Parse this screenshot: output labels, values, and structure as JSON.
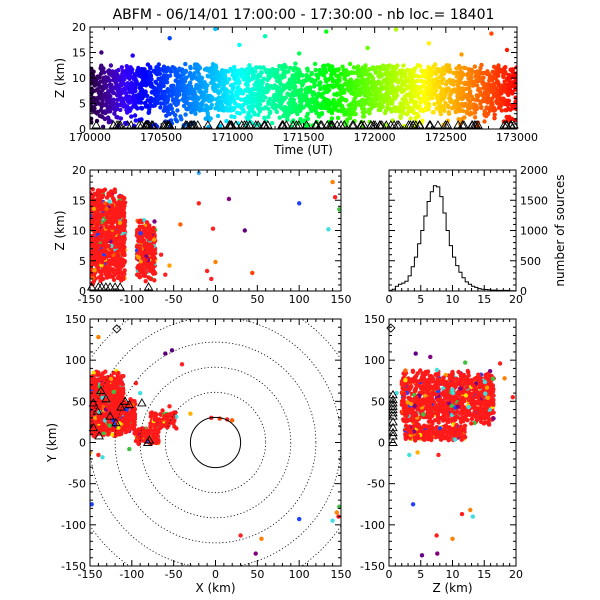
{
  "chart_data": [
    {
      "type": "scatter",
      "panel": "time-height",
      "title": "ABFM - 06/14/01 17:00:00 - 17:30:00 - nb loc.= 18401",
      "xlabel": "Time (UT)",
      "ylabel": "Z (km)",
      "xlim": [
        170000,
        173000
      ],
      "ylim": [
        0,
        20
      ],
      "x_ticks": [
        170000,
        170500,
        171000,
        171500,
        172000,
        172500,
        173000
      ],
      "y_ticks": [
        0,
        5,
        10,
        15,
        20
      ],
      "color_by": "time (rainbow: purple at start, red at end)",
      "band": {
        "z_low": 2.5,
        "z_high": 13
      },
      "outliers": [
        {
          "x": 170080,
          "y": 15.0
        },
        {
          "x": 170300,
          "y": 14.4
        },
        {
          "x": 170560,
          "y": 17.8
        },
        {
          "x": 170880,
          "y": 19.6
        },
        {
          "x": 171050,
          "y": 16.5
        },
        {
          "x": 171230,
          "y": 18.2
        },
        {
          "x": 171470,
          "y": 14.8
        },
        {
          "x": 171660,
          "y": 19.1
        },
        {
          "x": 171950,
          "y": 15.9
        },
        {
          "x": 172150,
          "y": 19.5
        },
        {
          "x": 172380,
          "y": 16.8
        },
        {
          "x": 172610,
          "y": 14.6
        },
        {
          "x": 172820,
          "y": 18.7
        },
        {
          "x": 172930,
          "y": 15.5
        }
      ]
    },
    {
      "type": "scatter",
      "panel": "x-height",
      "xlabel": "",
      "ylabel": "Z (km)",
      "xlim": [
        -150,
        150
      ],
      "ylim": [
        0,
        20
      ],
      "x_ticks": [
        -150,
        -100,
        -50,
        0,
        50,
        100,
        150
      ],
      "y_ticks": [
        0,
        5,
        10,
        15,
        20
      ],
      "clusters": [
        {
          "x_min": -152,
          "x_max": -108,
          "z_min": 1.0,
          "z_max": 17.5
        },
        {
          "x_min": -94,
          "x_max": -72,
          "z_min": 1.5,
          "z_max": 12.0
        }
      ],
      "scattered_points": [
        {
          "x": -20,
          "y": 19.5,
          "color": "#40b0ff"
        },
        {
          "x": -20,
          "y": 14.5,
          "color": "#ff2020"
        },
        {
          "x": -42,
          "y": 11.0,
          "color": "#ff6000"
        },
        {
          "x": -3,
          "y": 10.3,
          "color": "#ff2020"
        },
        {
          "x": 16,
          "y": 15.2,
          "color": "#800080"
        },
        {
          "x": 35,
          "y": 10.0,
          "color": "#600080"
        },
        {
          "x": -10,
          "y": 3.3,
          "color": "#ff2020"
        },
        {
          "x": 0,
          "y": 4.8,
          "color": "#ff8000"
        },
        {
          "x": -5,
          "y": 2.0,
          "color": "#ff2020"
        },
        {
          "x": 100,
          "y": 14.5,
          "color": "#2040ff"
        },
        {
          "x": 140,
          "y": 18.0,
          "color": "#ff8000"
        },
        {
          "x": 143,
          "y": 15.5,
          "color": "#ff2020"
        },
        {
          "x": 135,
          "y": 10.2,
          "color": "#40e0e0"
        },
        {
          "x": 148,
          "y": 13.5,
          "color": "#40c040"
        },
        {
          "x": -65,
          "y": 6.0,
          "color": "#ff2020"
        },
        {
          "x": -55,
          "y": 4.2,
          "color": "#ffa000"
        },
        {
          "x": -60,
          "y": 2.7,
          "color": "#ff2020"
        },
        {
          "x": 44,
          "y": 3.0,
          "color": "#ff4000"
        }
      ],
      "stations_x": [
        -148,
        -140,
        -136,
        -131,
        -126,
        -120,
        -114,
        -80
      ]
    },
    {
      "type": "histogram",
      "panel": "height-distribution",
      "xlabel": "",
      "ylabel": "number of sources",
      "y_axis_side": "right",
      "xlim": [
        0,
        20
      ],
      "ylim": [
        0,
        2000
      ],
      "x_ticks": [
        0,
        5,
        10,
        15,
        20
      ],
      "y_ticks": [
        0,
        500,
        1000,
        1500,
        2000
      ],
      "bin_width": 0.5,
      "bin_starts": [
        0,
        0.5,
        1,
        1.5,
        2,
        2.5,
        3,
        3.5,
        4,
        4.5,
        5,
        5.5,
        6,
        6.5,
        7,
        7.5,
        8,
        8.5,
        9,
        9.5,
        10,
        10.5,
        11,
        11.5,
        12,
        12.5,
        13,
        13.5,
        14,
        14.5,
        15,
        15.5,
        16,
        16.5,
        17,
        17.5,
        18,
        18.5,
        19,
        19.5
      ],
      "counts": [
        10,
        30,
        80,
        110,
        130,
        160,
        250,
        400,
        560,
        780,
        1000,
        1240,
        1480,
        1640,
        1740,
        1720,
        1560,
        1290,
        1000,
        750,
        560,
        420,
        310,
        220,
        150,
        110,
        80,
        60,
        40,
        30,
        25,
        20,
        15,
        15,
        10,
        10,
        10,
        10,
        5,
        5
      ]
    },
    {
      "type": "scatter",
      "panel": "plan-view",
      "xlabel": "X (km)",
      "ylabel": "Y (km)",
      "xlim": [
        -150,
        150
      ],
      "ylim": [
        -150,
        150
      ],
      "x_ticks": [
        -150,
        -100,
        -50,
        0,
        50,
        100,
        150
      ],
      "y_ticks": [
        -150,
        -100,
        -50,
        0,
        50,
        100,
        150
      ],
      "range_rings_km": [
        30,
        60,
        90,
        120,
        150,
        180
      ],
      "clusters": [
        {
          "x_min": -152,
          "x_max": -110,
          "y_min": 5,
          "y_max": 88
        },
        {
          "x_min": -128,
          "x_max": -96,
          "y_min": 10,
          "y_max": 55
        },
        {
          "x_min": -95,
          "x_max": -68,
          "y_min": -2,
          "y_max": 18
        },
        {
          "x_min": -78,
          "x_max": -45,
          "y_min": 15,
          "y_max": 40
        }
      ],
      "scattered_points": [
        {
          "x": -140,
          "y": 128,
          "color": "#ff8000"
        },
        {
          "x": -60,
          "y": 108,
          "color": "#600080"
        },
        {
          "x": -52,
          "y": 112,
          "color": "#600080"
        },
        {
          "x": -40,
          "y": 95,
          "color": "#ff2020"
        },
        {
          "x": -55,
          "y": 44,
          "color": "#ff2020"
        },
        {
          "x": -30,
          "y": 35,
          "color": "#ffb000"
        },
        {
          "x": -5,
          "y": 30,
          "color": "#ff2020"
        },
        {
          "x": 5,
          "y": 29,
          "color": "#ff4000"
        },
        {
          "x": 14,
          "y": 28,
          "color": "#ff2020"
        },
        {
          "x": 20,
          "y": 27,
          "color": "#ff6000"
        },
        {
          "x": -150,
          "y": -12,
          "color": "#ffa000"
        },
        {
          "x": -140,
          "y": -15,
          "color": "#ff2020"
        },
        {
          "x": -135,
          "y": -18,
          "color": "#40e0e0"
        },
        {
          "x": -103,
          "y": -8,
          "color": "#40c040"
        },
        {
          "x": -148,
          "y": -75,
          "color": "#2040ff"
        },
        {
          "x": 100,
          "y": -93,
          "color": "#2040ff"
        },
        {
          "x": 145,
          "y": -85,
          "color": "#ff8000"
        },
        {
          "x": 147,
          "y": -90,
          "color": "#ff2020"
        },
        {
          "x": 140,
          "y": -95,
          "color": "#40e0e0"
        },
        {
          "x": 148,
          "y": -78,
          "color": "#40c040"
        },
        {
          "x": 30,
          "y": -113,
          "color": "#ff2020"
        },
        {
          "x": 55,
          "y": -117,
          "color": "#ff8000"
        },
        {
          "x": 48,
          "y": -135,
          "color": "#800080"
        },
        {
          "x": -95,
          "y": 72,
          "color": "#ff2020"
        },
        {
          "x": -90,
          "y": 60,
          "color": "#40e0e0"
        }
      ],
      "stations": [
        {
          "x": -146,
          "y": 48
        },
        {
          "x": -141,
          "y": 38
        },
        {
          "x": -137,
          "y": 63
        },
        {
          "x": -131,
          "y": 53
        },
        {
          "x": -126,
          "y": 32
        },
        {
          "x": -119,
          "y": 24
        },
        {
          "x": -113,
          "y": 43
        },
        {
          "x": -146,
          "y": 18
        },
        {
          "x": -139,
          "y": 8
        },
        {
          "x": -88,
          "y": 48
        },
        {
          "x": -81,
          "y": 0
        },
        {
          "x": -79,
          "y": 3
        },
        {
          "x": -108,
          "y": 50
        },
        {
          "x": -103,
          "y": 46
        }
      ],
      "diamond": {
        "x": -118,
        "y": 138
      }
    },
    {
      "type": "scatter",
      "panel": "z-y",
      "xlabel": "Z (km)",
      "ylabel": "",
      "xlim": [
        0,
        20
      ],
      "ylim": [
        -150,
        150
      ],
      "x_ticks": [
        0,
        5,
        10,
        15,
        20
      ],
      "y_ticks": [
        -150,
        -100,
        -50,
        0,
        50,
        100,
        150
      ],
      "clusters": [
        {
          "x_min": 2.0,
          "x_max": 16.5,
          "y_min": 20,
          "y_max": 90
        },
        {
          "x_min": 2.5,
          "x_max": 12.0,
          "y_min": 2,
          "y_max": 22
        }
      ],
      "scattered_points": [
        {
          "x": 4.2,
          "y": 108,
          "color": "#600080"
        },
        {
          "x": 6.5,
          "y": 104,
          "color": "#800080"
        },
        {
          "x": 12.0,
          "y": 97,
          "color": "#40c040"
        },
        {
          "x": 17.5,
          "y": 96,
          "color": "#ff2020"
        },
        {
          "x": 18.2,
          "y": 78,
          "color": "#ff8000"
        },
        {
          "x": 4.5,
          "y": -12,
          "color": "#ffb000"
        },
        {
          "x": 3.2,
          "y": -15,
          "color": "#40e0e0"
        },
        {
          "x": 7.8,
          "y": -15,
          "color": "#ff2020"
        },
        {
          "x": 3.8,
          "y": -75,
          "color": "#2040ff"
        },
        {
          "x": 11.5,
          "y": -87,
          "color": "#ff2020"
        },
        {
          "x": 12.8,
          "y": -82,
          "color": "#ff8000"
        },
        {
          "x": 13.2,
          "y": -90,
          "color": "#40e0e0"
        },
        {
          "x": 7.5,
          "y": -113,
          "color": "#ff2020"
        },
        {
          "x": 10.0,
          "y": -117,
          "color": "#ff8000"
        },
        {
          "x": 7.6,
          "y": -135,
          "color": "#800080"
        },
        {
          "x": 5.2,
          "y": -137,
          "color": "#600080"
        },
        {
          "x": 1.2,
          "y": 60,
          "color": "#40e0e0"
        },
        {
          "x": 19.5,
          "y": 55,
          "color": "#ff2020"
        }
      ],
      "stations_y": [
        58,
        52,
        48,
        44,
        40,
        36,
        32,
        25,
        18,
        12,
        8,
        0
      ],
      "diamond": {
        "x": 0.3,
        "y": 139
      }
    }
  ]
}
